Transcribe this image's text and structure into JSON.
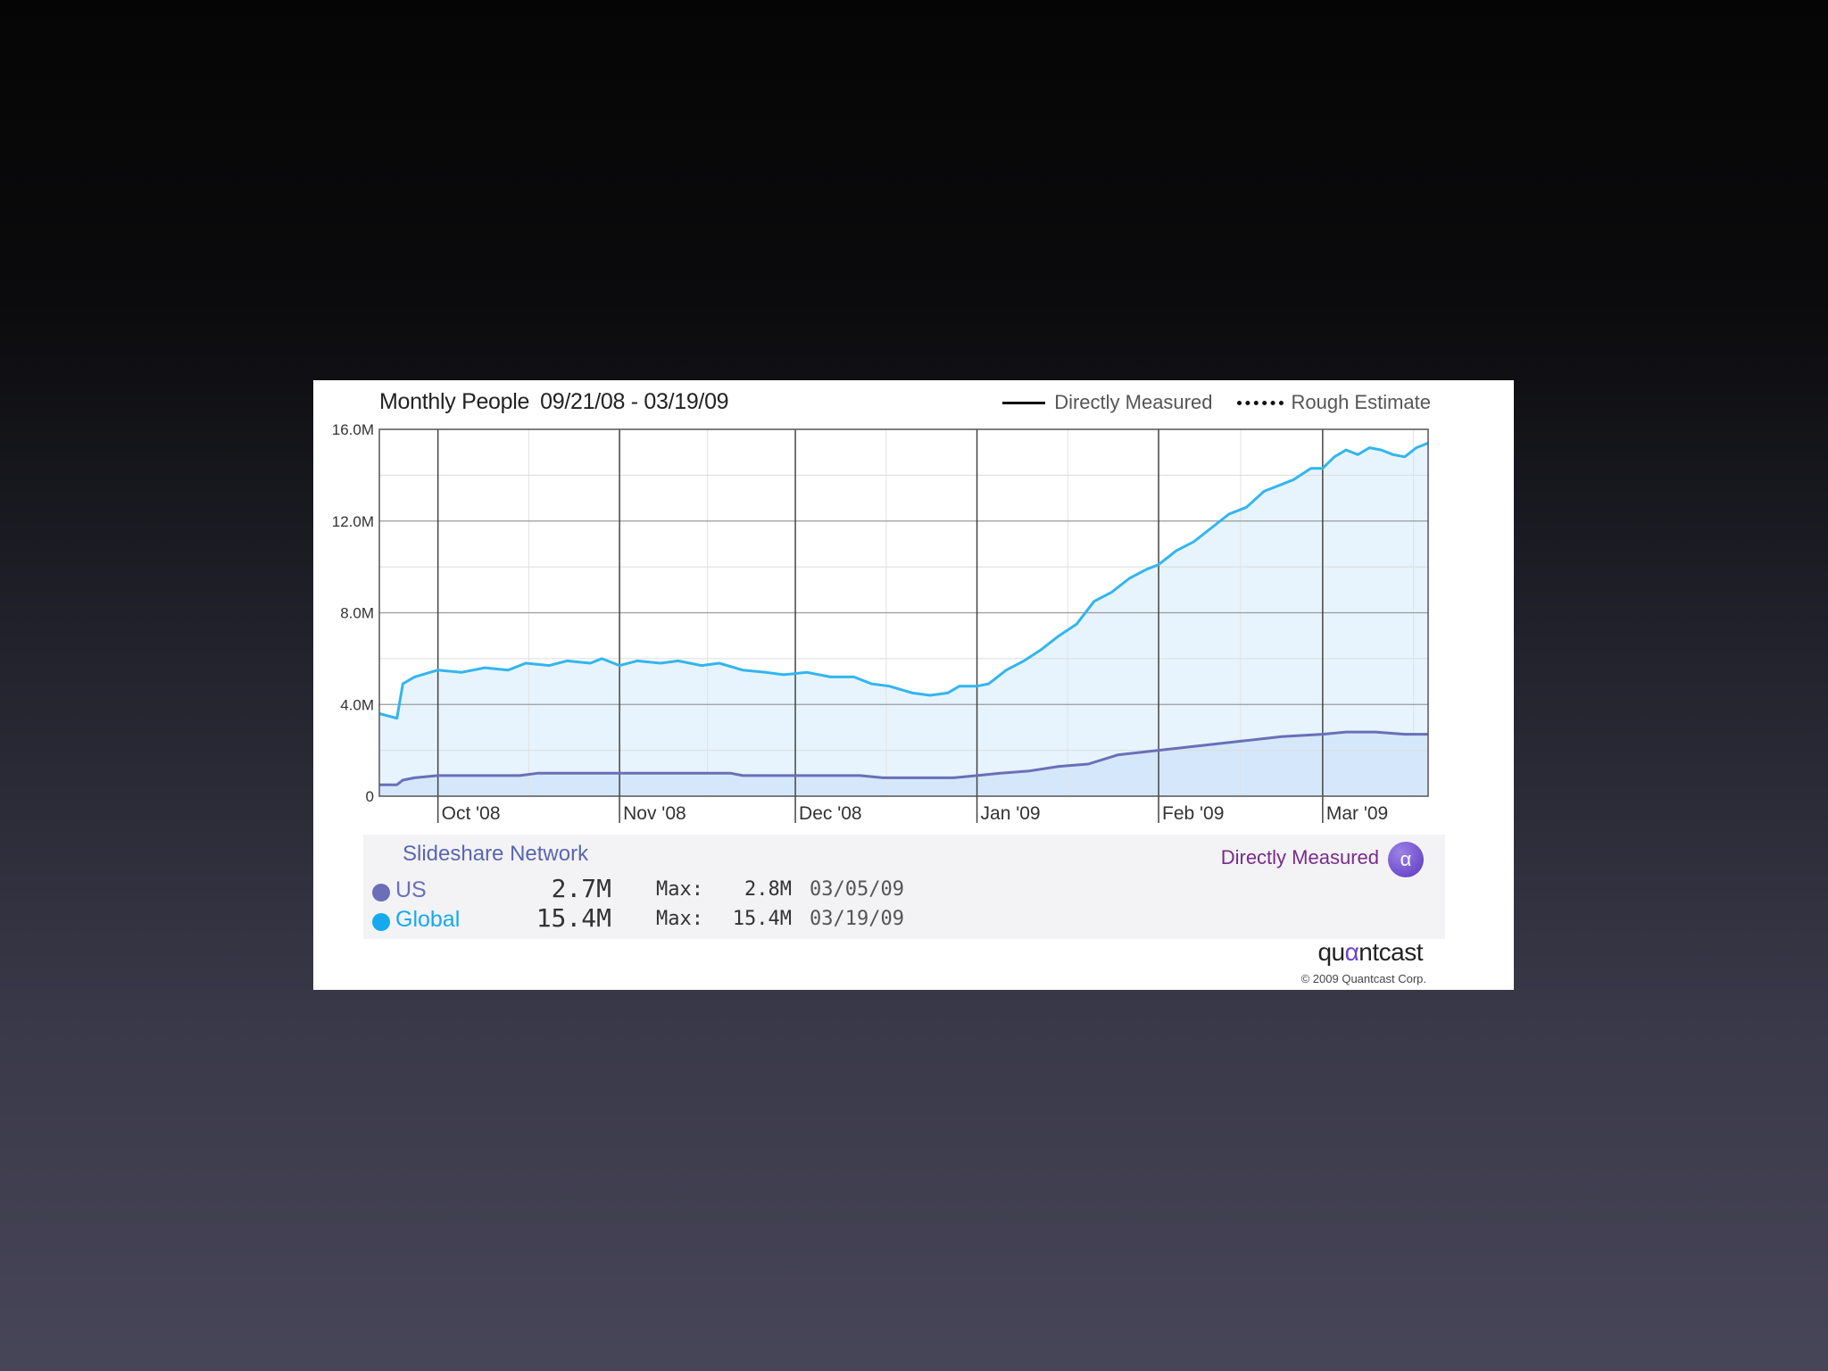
{
  "header": {
    "title": "Monthly People",
    "date_range": "09/21/08 - 03/19/09",
    "legend_direct": "Directly Measured",
    "legend_rough": "Rough Estimate"
  },
  "chart_data": {
    "type": "area",
    "title": "Monthly People 09/21/08 - 03/19/09",
    "x_range": [
      "2008-09-21",
      "2009-03-19"
    ],
    "x_tick_labels": [
      "Oct '08",
      "Nov '08",
      "Dec '08",
      "Jan '09",
      "Feb '09",
      "Mar '09"
    ],
    "x_tick_dates": [
      "2008-10-01",
      "2008-11-01",
      "2008-12-01",
      "2009-01-01",
      "2009-02-01",
      "2009-03-01"
    ],
    "y_tick_labels": [
      "0",
      "4.0M",
      "8.0M",
      "12.0M",
      "16.0M"
    ],
    "y_tick_values": [
      0,
      4.0,
      8.0,
      12.0,
      16.0
    ],
    "ylim": [
      0,
      16.0
    ],
    "y_unit": "M",
    "grid": true,
    "legend": "top-right",
    "series": [
      {
        "name": "Global",
        "color": "#33b5ee",
        "fill": "#e7f4fd",
        "points": [
          [
            "2008-09-21",
            3.6
          ],
          [
            "2008-09-24",
            3.4
          ],
          [
            "2008-09-25",
            4.9
          ],
          [
            "2008-09-27",
            5.2
          ],
          [
            "2008-10-01",
            5.5
          ],
          [
            "2008-10-05",
            5.4
          ],
          [
            "2008-10-09",
            5.6
          ],
          [
            "2008-10-13",
            5.5
          ],
          [
            "2008-10-16",
            5.8
          ],
          [
            "2008-10-20",
            5.7
          ],
          [
            "2008-10-23",
            5.9
          ],
          [
            "2008-10-27",
            5.8
          ],
          [
            "2008-10-29",
            6.0
          ],
          [
            "2008-11-01",
            5.7
          ],
          [
            "2008-11-04",
            5.9
          ],
          [
            "2008-11-08",
            5.8
          ],
          [
            "2008-11-11",
            5.9
          ],
          [
            "2008-11-15",
            5.7
          ],
          [
            "2008-11-18",
            5.8
          ],
          [
            "2008-11-22",
            5.5
          ],
          [
            "2008-11-26",
            5.4
          ],
          [
            "2008-11-29",
            5.3
          ],
          [
            "2008-12-03",
            5.4
          ],
          [
            "2008-12-07",
            5.2
          ],
          [
            "2008-12-11",
            5.2
          ],
          [
            "2008-12-14",
            4.9
          ],
          [
            "2008-12-17",
            4.8
          ],
          [
            "2008-12-21",
            4.5
          ],
          [
            "2008-12-24",
            4.4
          ],
          [
            "2008-12-27",
            4.5
          ],
          [
            "2008-12-29",
            4.8
          ],
          [
            "2009-01-01",
            4.8
          ],
          [
            "2009-01-03",
            4.9
          ],
          [
            "2009-01-06",
            5.5
          ],
          [
            "2009-01-09",
            5.9
          ],
          [
            "2009-01-12",
            6.4
          ],
          [
            "2009-01-15",
            7.0
          ],
          [
            "2009-01-18",
            7.5
          ],
          [
            "2009-01-21",
            8.5
          ],
          [
            "2009-01-24",
            8.9
          ],
          [
            "2009-01-27",
            9.5
          ],
          [
            "2009-01-30",
            9.9
          ],
          [
            "2009-02-01",
            10.1
          ],
          [
            "2009-02-04",
            10.7
          ],
          [
            "2009-02-07",
            11.1
          ],
          [
            "2009-02-10",
            11.7
          ],
          [
            "2009-02-13",
            12.3
          ],
          [
            "2009-02-16",
            12.6
          ],
          [
            "2009-02-19",
            13.3
          ],
          [
            "2009-02-22",
            13.6
          ],
          [
            "2009-02-24",
            13.8
          ],
          [
            "2009-02-27",
            14.3
          ],
          [
            "2009-03-01",
            14.3
          ],
          [
            "2009-03-03",
            14.8
          ],
          [
            "2009-03-05",
            15.1
          ],
          [
            "2009-03-07",
            14.9
          ],
          [
            "2009-03-09",
            15.2
          ],
          [
            "2009-03-11",
            15.1
          ],
          [
            "2009-03-13",
            14.9
          ],
          [
            "2009-03-15",
            14.8
          ],
          [
            "2009-03-17",
            15.2
          ],
          [
            "2009-03-19",
            15.4
          ]
        ]
      },
      {
        "name": "US",
        "color": "#6a6fb8",
        "fill": "#d5e8fb",
        "points": [
          [
            "2008-09-21",
            0.5
          ],
          [
            "2008-09-24",
            0.5
          ],
          [
            "2008-09-25",
            0.7
          ],
          [
            "2008-09-27",
            0.8
          ],
          [
            "2008-10-01",
            0.9
          ],
          [
            "2008-10-15",
            0.9
          ],
          [
            "2008-10-18",
            1.0
          ],
          [
            "2008-11-01",
            1.0
          ],
          [
            "2008-11-20",
            1.0
          ],
          [
            "2008-11-22",
            0.9
          ],
          [
            "2008-12-12",
            0.9
          ],
          [
            "2008-12-16",
            0.8
          ],
          [
            "2008-12-28",
            0.8
          ],
          [
            "2009-01-01",
            0.9
          ],
          [
            "2009-01-05",
            1.0
          ],
          [
            "2009-01-10",
            1.1
          ],
          [
            "2009-01-15",
            1.3
          ],
          [
            "2009-01-20",
            1.4
          ],
          [
            "2009-01-25",
            1.8
          ],
          [
            "2009-02-01",
            2.0
          ],
          [
            "2009-02-08",
            2.2
          ],
          [
            "2009-02-15",
            2.4
          ],
          [
            "2009-02-22",
            2.6
          ],
          [
            "2009-03-01",
            2.7
          ],
          [
            "2009-03-05",
            2.8
          ],
          [
            "2009-03-10",
            2.8
          ],
          [
            "2009-03-15",
            2.7
          ],
          [
            "2009-03-19",
            2.7
          ]
        ]
      }
    ]
  },
  "stats": {
    "network_title": "Slideshare Network",
    "badge_label": "Directly Measured",
    "badge_icon": "alpha-icon",
    "badge_symbol": "α",
    "max_label": "Max:",
    "rows": [
      {
        "name": "US",
        "color": "#6a6fb8",
        "value": "2.7M",
        "max": "2.8M",
        "max_date": "03/05/09"
      },
      {
        "name": "Global",
        "color": "#16a9ee",
        "value": "15.4M",
        "max": "15.4M",
        "max_date": "03/19/09"
      }
    ]
  },
  "brand": {
    "logo_pre": "qu",
    "logo_accent": "α",
    "logo_post": "ntcast",
    "copyright": "© 2009 Quantcast Corp."
  }
}
